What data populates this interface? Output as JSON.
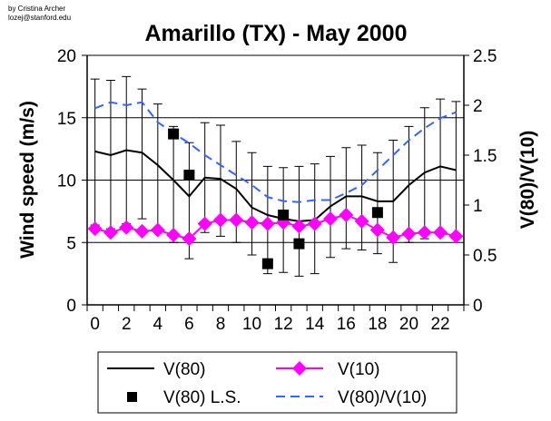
{
  "credit": {
    "line1": "by Cristina Archer",
    "line2": "lozej@stanford.edu"
  },
  "chart_data": {
    "type": "line",
    "title": "Amarillo (TX) - May 2000",
    "xlabel": "",
    "ylabel": "Wind speed (m/s)",
    "y2label": "V(80)/V(10)",
    "ylim": [
      0,
      20
    ],
    "y2lim": [
      0,
      2.5
    ],
    "yticks": [
      "0",
      "5",
      "10",
      "15",
      "20"
    ],
    "y2ticks": [
      "0",
      "0.5",
      "1",
      "1.5",
      "2",
      "2.5"
    ],
    "x": [
      0,
      1,
      2,
      3,
      4,
      5,
      6,
      7,
      8,
      9,
      10,
      11,
      12,
      13,
      14,
      15,
      16,
      17,
      18,
      19,
      20,
      21,
      22,
      23
    ],
    "xticklabels": [
      "0",
      "2",
      "4",
      "6",
      "8",
      "10",
      "12",
      "14",
      "16",
      "18",
      "20",
      "22"
    ],
    "grid": "horizontal",
    "legend_position": "bottom",
    "series": [
      {
        "name": "V(80)",
        "axis": "left",
        "color": "#000000",
        "style": "solid",
        "values": [
          12.3,
          12.0,
          12.4,
          12.2,
          11.2,
          10.0,
          8.7,
          10.2,
          10.1,
          9.3,
          7.8,
          7.2,
          6.9,
          6.7,
          6.8,
          7.9,
          8.7,
          8.7,
          8.3,
          8.3,
          9.6,
          10.6,
          11.1,
          10.8
        ],
        "error_upper": [
          18.1,
          18.0,
          18.3,
          17.3,
          16.1,
          14.3,
          13.0,
          14.6,
          14.4,
          13.1,
          12.2,
          11.1,
          11.0,
          11.1,
          11.3,
          11.9,
          12.6,
          12.8,
          12.2,
          13.2,
          14.3,
          15.8,
          16.5,
          16.3
        ],
        "error_lower": [
          6.4,
          6.1,
          6.5,
          6.9,
          5.9,
          5.0,
          3.7,
          5.8,
          5.5,
          5.0,
          4.0,
          2.5,
          2.6,
          2.3,
          2.5,
          3.8,
          4.5,
          4.4,
          4.1,
          3.4,
          5.0,
          5.3,
          5.6,
          5.6
        ]
      },
      {
        "name": "V(10)",
        "axis": "left",
        "color": "#FF00FF",
        "style": "diamond",
        "values": [
          6.1,
          5.8,
          6.2,
          5.9,
          6.0,
          5.6,
          5.3,
          6.5,
          6.8,
          6.8,
          6.6,
          6.5,
          6.6,
          6.3,
          6.5,
          6.9,
          7.2,
          6.7,
          6.0,
          5.4,
          5.7,
          5.8,
          5.8,
          5.5
        ]
      },
      {
        "name": "V(80) L.S.",
        "axis": "left",
        "color": "#000000",
        "style": "square",
        "x": [
          5,
          6,
          11,
          12,
          13,
          18
        ],
        "values": [
          13.7,
          10.4,
          3.3,
          7.2,
          4.9,
          7.4
        ]
      },
      {
        "name": "V(80)/V(10)",
        "axis": "right",
        "color": "#3366FF",
        "style": "dashed",
        "values": [
          1.97,
          2.03,
          2.0,
          2.03,
          1.83,
          1.72,
          1.62,
          1.5,
          1.4,
          1.3,
          1.2,
          1.08,
          1.04,
          1.03,
          1.05,
          1.05,
          1.12,
          1.2,
          1.35,
          1.5,
          1.65,
          1.77,
          1.87,
          1.93
        ]
      }
    ]
  }
}
